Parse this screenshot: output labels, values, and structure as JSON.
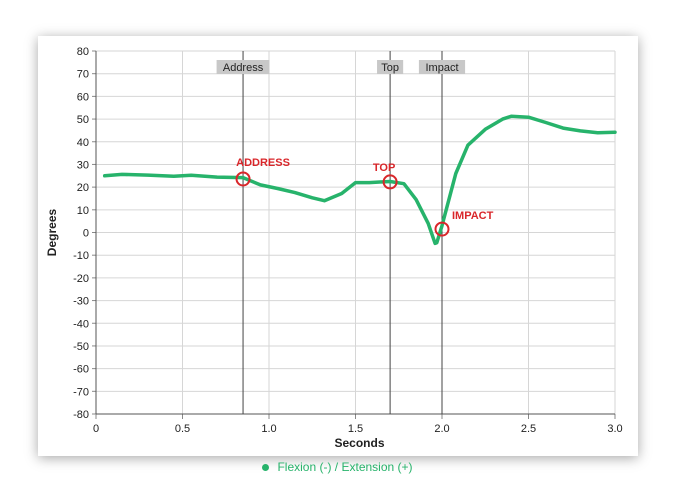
{
  "chart_data": {
    "type": "line",
    "xlabel": "Seconds",
    "ylabel": "Degrees",
    "xlim": [
      0,
      3.0
    ],
    "ylim": [
      -80,
      80
    ],
    "x_ticks": [
      "0",
      "0.5",
      "1.0",
      "1.5",
      "2.0",
      "2.5",
      "3.0"
    ],
    "y_ticks": [
      "80",
      "70",
      "60",
      "50",
      "40",
      "30",
      "20",
      "10",
      "0",
      "-10",
      "-20",
      "-30",
      "-40",
      "-50",
      "-60",
      "-70",
      "-80"
    ],
    "grid": true,
    "legend_position": "bottom",
    "series": [
      {
        "name": "Flexion (-) / Extension (+)",
        "color": "#27b36b",
        "points": [
          [
            0.05,
            25
          ],
          [
            0.15,
            25.6
          ],
          [
            0.3,
            25.3
          ],
          [
            0.45,
            24.8
          ],
          [
            0.55,
            25.2
          ],
          [
            0.7,
            24.4
          ],
          [
            0.85,
            24.2
          ],
          [
            0.95,
            21.0
          ],
          [
            1.05,
            19.4
          ],
          [
            1.15,
            17.6
          ],
          [
            1.25,
            15.3
          ],
          [
            1.32,
            14.0
          ],
          [
            1.42,
            17.2
          ],
          [
            1.5,
            22.0
          ],
          [
            1.58,
            22.0
          ],
          [
            1.7,
            22.5
          ],
          [
            1.78,
            21.5
          ],
          [
            1.85,
            14.5
          ],
          [
            1.92,
            4.0
          ],
          [
            1.96,
            -4.8
          ],
          [
            1.97,
            -4.5
          ],
          [
            2.0,
            3.0
          ],
          [
            2.08,
            26.0
          ],
          [
            2.15,
            38.5
          ],
          [
            2.25,
            45.5
          ],
          [
            2.35,
            50.0
          ],
          [
            2.4,
            51.2
          ],
          [
            2.5,
            50.8
          ],
          [
            2.6,
            48.5
          ],
          [
            2.7,
            46.0
          ],
          [
            2.8,
            44.8
          ],
          [
            2.9,
            44.0
          ],
          [
            3.0,
            44.2
          ]
        ]
      }
    ],
    "phases": [
      {
        "label": "Address",
        "x": 0.85
      },
      {
        "label": "Top",
        "x": 1.7
      },
      {
        "label": "Impact",
        "x": 2.0
      }
    ],
    "annotations": [
      {
        "label": "ADDRESS",
        "x": 0.85,
        "y": 23.6,
        "label_side": "above"
      },
      {
        "label": "TOP",
        "x": 1.7,
        "y": 22.3,
        "label_side": "above-left"
      },
      {
        "label": "IMPACT",
        "x": 2.0,
        "y": 1.5,
        "label_side": "right"
      }
    ]
  }
}
